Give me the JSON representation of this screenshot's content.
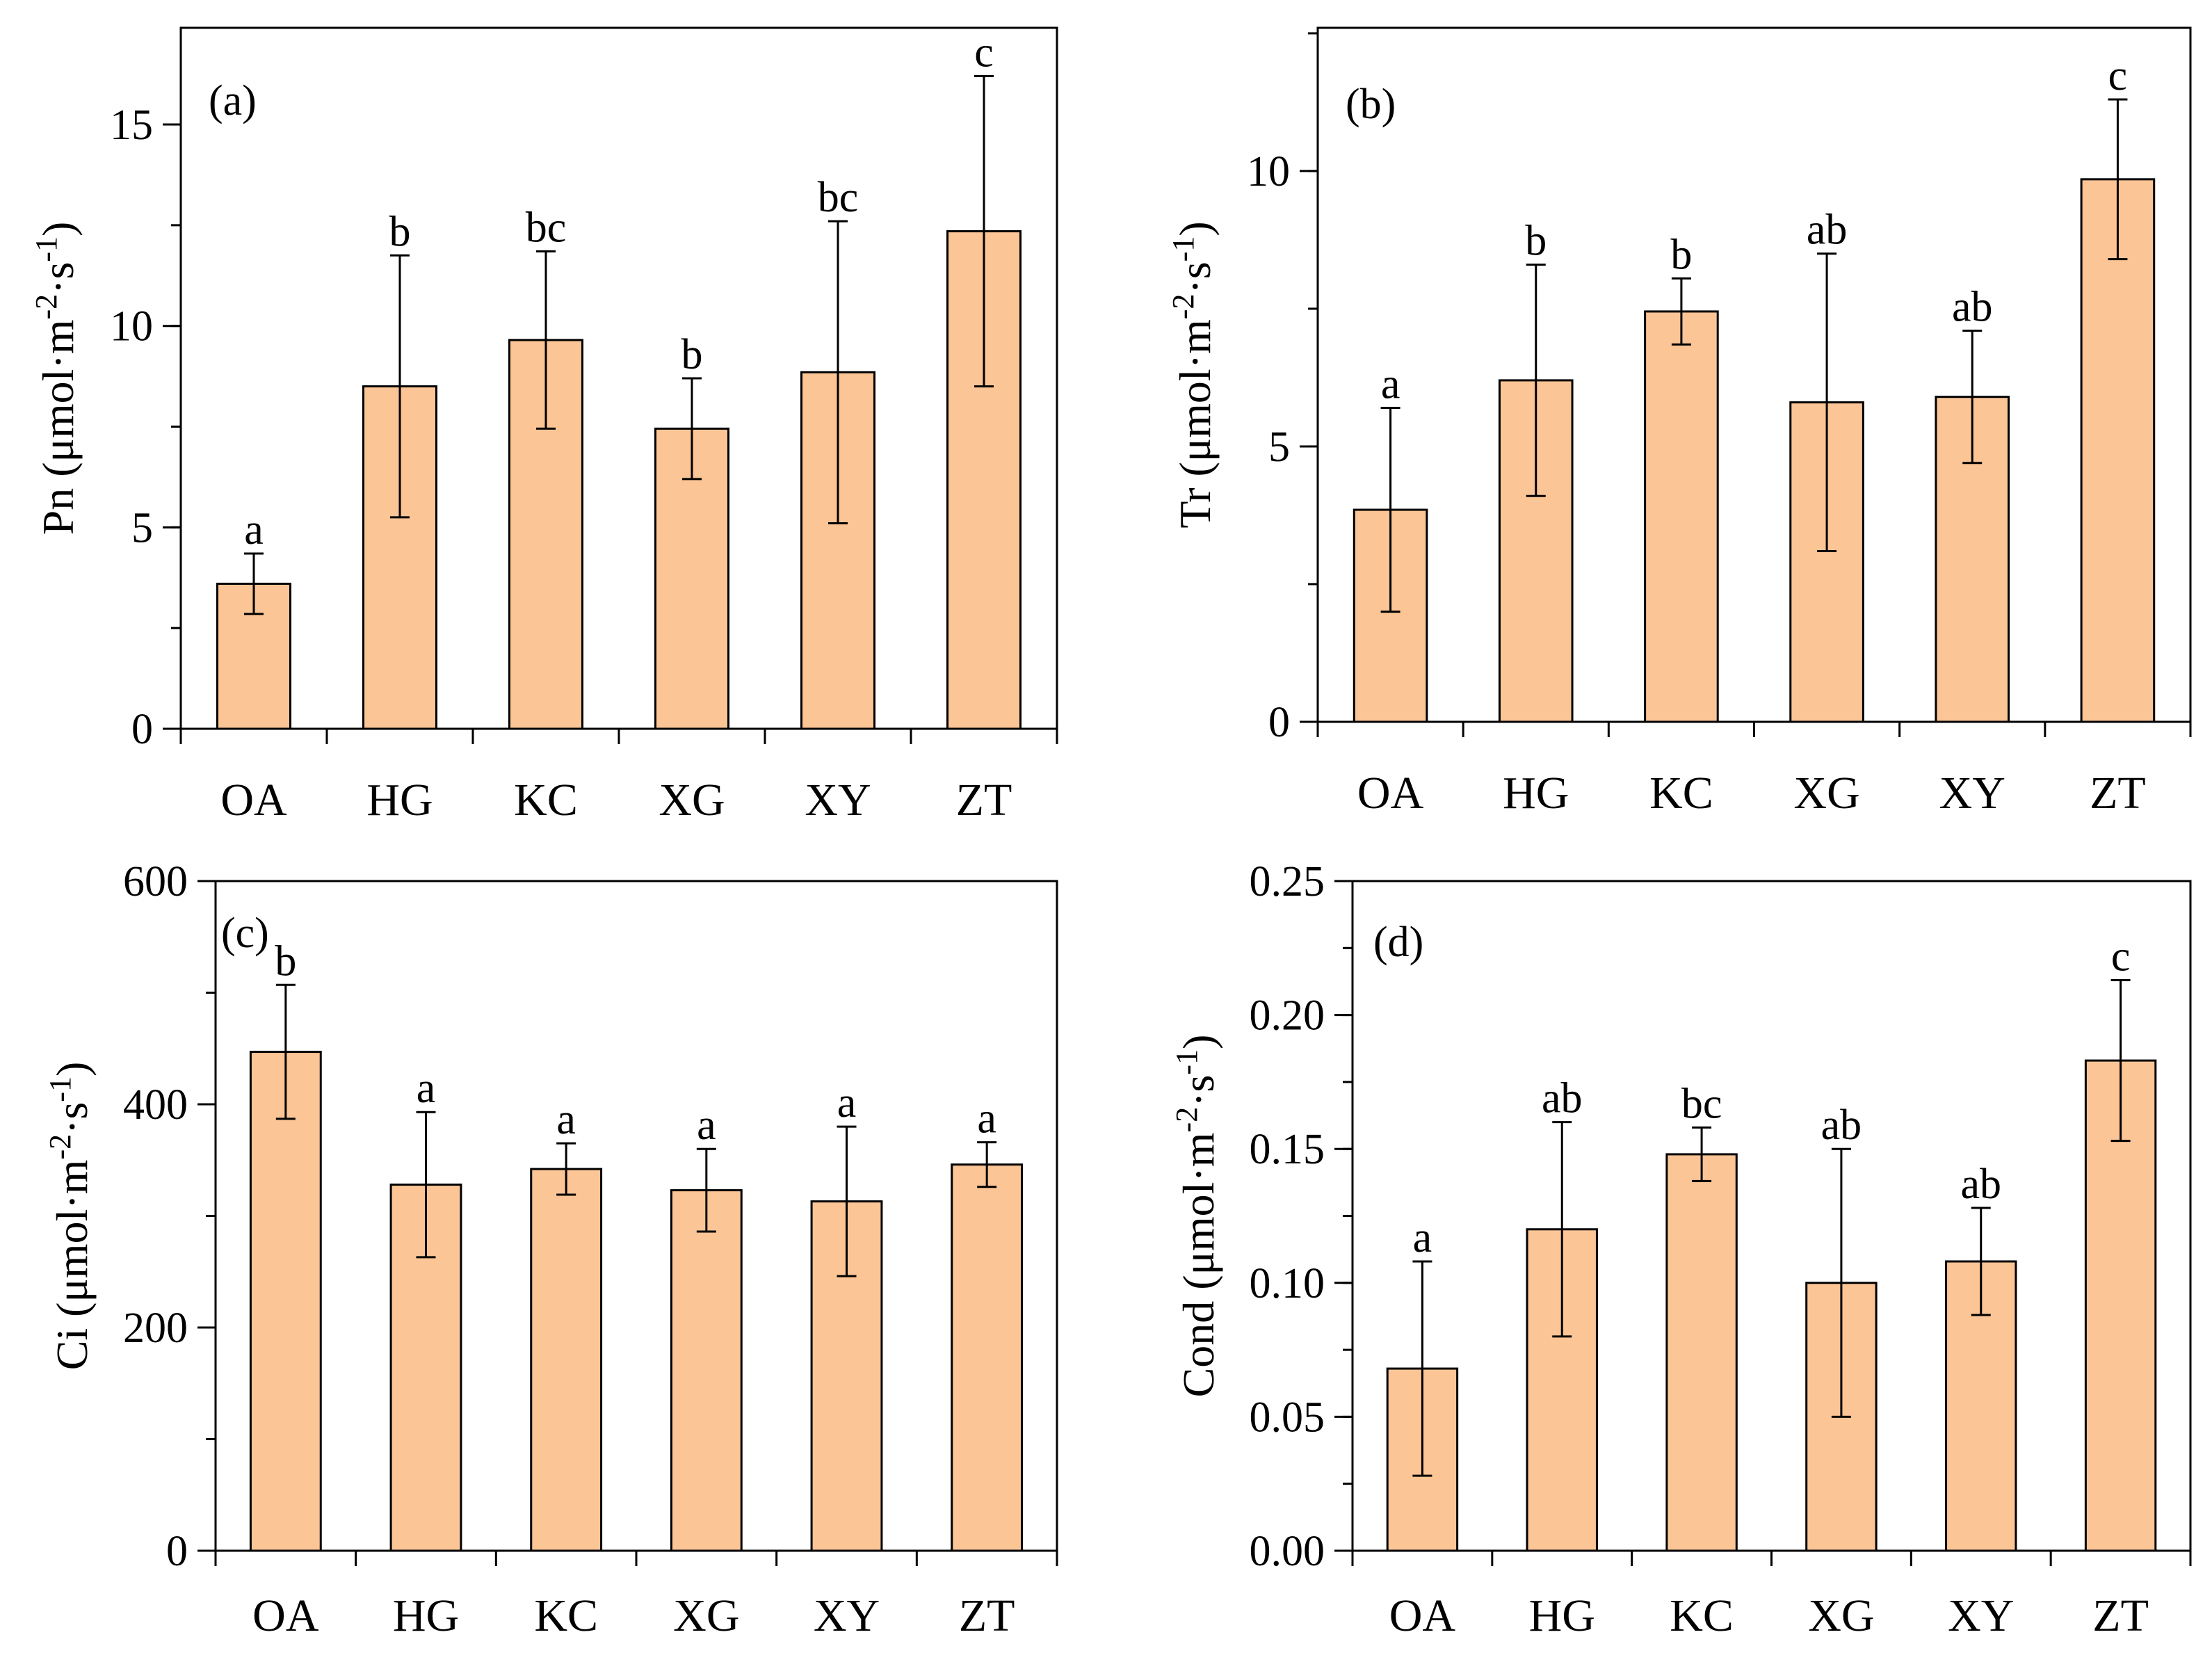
{
  "colors": {
    "bar_fill": "#fbc596",
    "bar_stroke": "#000000",
    "axis": "#000000"
  },
  "chart_data": [
    {
      "type": "bar",
      "panel_label": "(a)",
      "categories": [
        "OA",
        "HG",
        "KC",
        "XG",
        "XY",
        "ZT"
      ],
      "values": [
        3.6,
        8.5,
        9.65,
        7.45,
        8.85,
        12.35
      ],
      "errors": [
        0.75,
        3.25,
        2.2,
        1.25,
        3.75,
        3.85
      ],
      "letters": [
        "a",
        "b",
        "bc",
        "b",
        "bc",
        "c"
      ],
      "ylabel_main": "Pn (μmol·m",
      "ylabel_exp1": "-2",
      "ylabel_mid": "·s",
      "ylabel_exp2": "-1",
      "ylabel_end": ")",
      "ylim": [
        0,
        17.4
      ],
      "yticks": [
        0,
        5,
        10,
        15
      ],
      "ytick_labels": [
        "0",
        "5",
        "10",
        "15"
      ],
      "minor_step": 2.5
    },
    {
      "type": "bar",
      "panel_label": "(b)",
      "categories": [
        "OA",
        "HG",
        "KC",
        "XG",
        "XY",
        "ZT"
      ],
      "values": [
        3.85,
        6.2,
        7.45,
        5.8,
        5.9,
        9.85
      ],
      "errors": [
        1.85,
        2.1,
        0.6,
        2.7,
        1.2,
        1.45
      ],
      "letters": [
        "a",
        "b",
        "b",
        "ab",
        "ab",
        "c"
      ],
      "ylabel_main": "Tr (μmol·m",
      "ylabel_exp1": "-2",
      "ylabel_mid": "·s",
      "ylabel_exp2": "-1",
      "ylabel_end": ")",
      "ylim": [
        0,
        12.6
      ],
      "yticks": [
        0,
        5,
        10
      ],
      "ytick_labels": [
        "0",
        "5",
        "10"
      ],
      "minor_step": 2.5
    },
    {
      "type": "bar",
      "panel_label": "(c)",
      "categories": [
        "OA",
        "HG",
        "KC",
        "XG",
        "XY",
        "ZT"
      ],
      "values": [
        447,
        328,
        342,
        323,
        313,
        346
      ],
      "errors": [
        60,
        65,
        23,
        37,
        67,
        20
      ],
      "letters": [
        "b",
        "a",
        "a",
        "a",
        "a",
        "a"
      ],
      "ylabel_main": "Ci (μmol·m",
      "ylabel_exp1": "-2",
      "ylabel_mid": "·s",
      "ylabel_exp2": "-1",
      "ylabel_end": ")",
      "ylim": [
        0,
        600
      ],
      "yticks": [
        0,
        200,
        400,
        600
      ],
      "ytick_labels": [
        "0",
        "200",
        "400",
        "600"
      ],
      "minor_step": 100
    },
    {
      "type": "bar",
      "panel_label": "(d)",
      "categories": [
        "OA",
        "HG",
        "KC",
        "XG",
        "XY",
        "ZT"
      ],
      "values": [
        0.068,
        0.12,
        0.148,
        0.1,
        0.108,
        0.183
      ],
      "errors": [
        0.04,
        0.04,
        0.01,
        0.05,
        0.02,
        0.03
      ],
      "letters": [
        "a",
        "ab",
        "bc",
        "ab",
        "ab",
        "c"
      ],
      "ylabel_main": "Cond (μmol·m",
      "ylabel_exp1": "-2",
      "ylabel_mid": "·s",
      "ylabel_exp2": "-1",
      "ylabel_end": ")",
      "ylim": [
        0,
        0.25
      ],
      "yticks": [
        0,
        0.05,
        0.1,
        0.15,
        0.2,
        0.25
      ],
      "ytick_labels": [
        "0.00",
        "0.05",
        "0.10",
        "0.15",
        "0.20",
        "0.25"
      ],
      "minor_step": 0.025
    }
  ]
}
